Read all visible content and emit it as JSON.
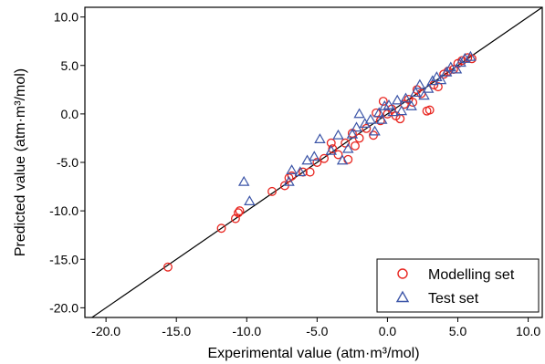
{
  "chart_data": {
    "type": "scatter",
    "xlabel": "Experimental value (atm·m³/mol)",
    "ylabel": "Predicted value (atm·m³/mol)",
    "xlim": [
      -21.5,
      11.0
    ],
    "ylim": [
      -21.0,
      11.0
    ],
    "x_ticks": [
      "-20.0",
      "-15.0",
      "-10.0",
      "-5.0",
      "0.0",
      "5.0",
      "10.0"
    ],
    "y_ticks": [
      "-20.0",
      "-15.0",
      "-10.0",
      "-5.0",
      "0.0",
      "5.0",
      "10.0"
    ],
    "grid": false,
    "legend_position": "bottom-right",
    "reference_line": {
      "slope": 1,
      "intercept": 0,
      "color": "#000000"
    },
    "series": [
      {
        "name": "Modelling set",
        "marker": "circle",
        "color": "#e8251f",
        "points": [
          [
            -15.6,
            -15.8
          ],
          [
            -11.8,
            -11.8
          ],
          [
            -10.8,
            -10.8
          ],
          [
            -10.6,
            -10.2
          ],
          [
            -10.5,
            -10.0
          ],
          [
            -8.2,
            -8.0
          ],
          [
            -7.3,
            -7.4
          ],
          [
            -7.0,
            -6.6
          ],
          [
            -6.8,
            -6.4
          ],
          [
            -6.0,
            -6.0
          ],
          [
            -5.5,
            -6.0
          ],
          [
            -5.0,
            -5.0
          ],
          [
            -4.5,
            -4.6
          ],
          [
            -4.0,
            -3.0
          ],
          [
            -3.9,
            -3.6
          ],
          [
            -3.5,
            -4.2
          ],
          [
            -3.0,
            -3.0
          ],
          [
            -2.8,
            -4.7
          ],
          [
            -2.5,
            -2.0
          ],
          [
            -2.3,
            -3.3
          ],
          [
            -2.0,
            -2.5
          ],
          [
            -1.5,
            -1.5
          ],
          [
            -1.0,
            -2.2
          ],
          [
            -0.8,
            0.1
          ],
          [
            -0.5,
            -0.7
          ],
          [
            -0.3,
            1.3
          ],
          [
            0.0,
            0.0
          ],
          [
            0.3,
            0.5
          ],
          [
            0.6,
            -0.2
          ],
          [
            0.9,
            -0.5
          ],
          [
            1.2,
            1.0
          ],
          [
            1.5,
            1.5
          ],
          [
            1.8,
            1.2
          ],
          [
            2.1,
            2.5
          ],
          [
            2.4,
            2.1
          ],
          [
            2.8,
            0.3
          ],
          [
            3.0,
            0.4
          ],
          [
            3.3,
            3.0
          ],
          [
            3.6,
            2.8
          ],
          [
            4.0,
            4.1
          ],
          [
            4.3,
            4.4
          ],
          [
            4.7,
            4.6
          ],
          [
            5.0,
            5.2
          ],
          [
            5.3,
            5.5
          ],
          [
            5.7,
            5.8
          ],
          [
            6.0,
            5.7
          ]
        ]
      },
      {
        "name": "Test set",
        "marker": "triangle",
        "color": "#3d56a8",
        "points": [
          [
            -10.2,
            -7.0
          ],
          [
            -9.8,
            -9.0
          ],
          [
            -7.0,
            -7.0
          ],
          [
            -6.8,
            -5.8
          ],
          [
            -6.2,
            -6.0
          ],
          [
            -5.7,
            -4.8
          ],
          [
            -5.2,
            -4.4
          ],
          [
            -4.8,
            -2.6
          ],
          [
            -4.0,
            -3.8
          ],
          [
            -3.5,
            -2.2
          ],
          [
            -3.2,
            -4.8
          ],
          [
            -2.8,
            -3.6
          ],
          [
            -2.5,
            -2.1
          ],
          [
            -2.2,
            -1.4
          ],
          [
            -2.0,
            0.0
          ],
          [
            -1.6,
            -1.0
          ],
          [
            -1.2,
            -0.6
          ],
          [
            -0.9,
            -1.8
          ],
          [
            -0.6,
            0.1
          ],
          [
            -0.4,
            -0.6
          ],
          [
            -0.2,
            0.8
          ],
          [
            0.1,
            0.9
          ],
          [
            0.4,
            0.2
          ],
          [
            0.7,
            1.4
          ],
          [
            1.0,
            0.3
          ],
          [
            1.3,
            1.6
          ],
          [
            1.7,
            0.8
          ],
          [
            2.0,
            2.2
          ],
          [
            2.3,
            3.0
          ],
          [
            2.6,
            1.9
          ],
          [
            2.9,
            2.6
          ],
          [
            3.2,
            3.4
          ],
          [
            3.5,
            3.8
          ],
          [
            3.8,
            3.5
          ],
          [
            4.2,
            4.3
          ],
          [
            4.5,
            4.8
          ],
          [
            4.9,
            4.6
          ],
          [
            5.2,
            5.3
          ],
          [
            5.5,
            5.7
          ],
          [
            5.9,
            5.9
          ]
        ]
      }
    ]
  }
}
